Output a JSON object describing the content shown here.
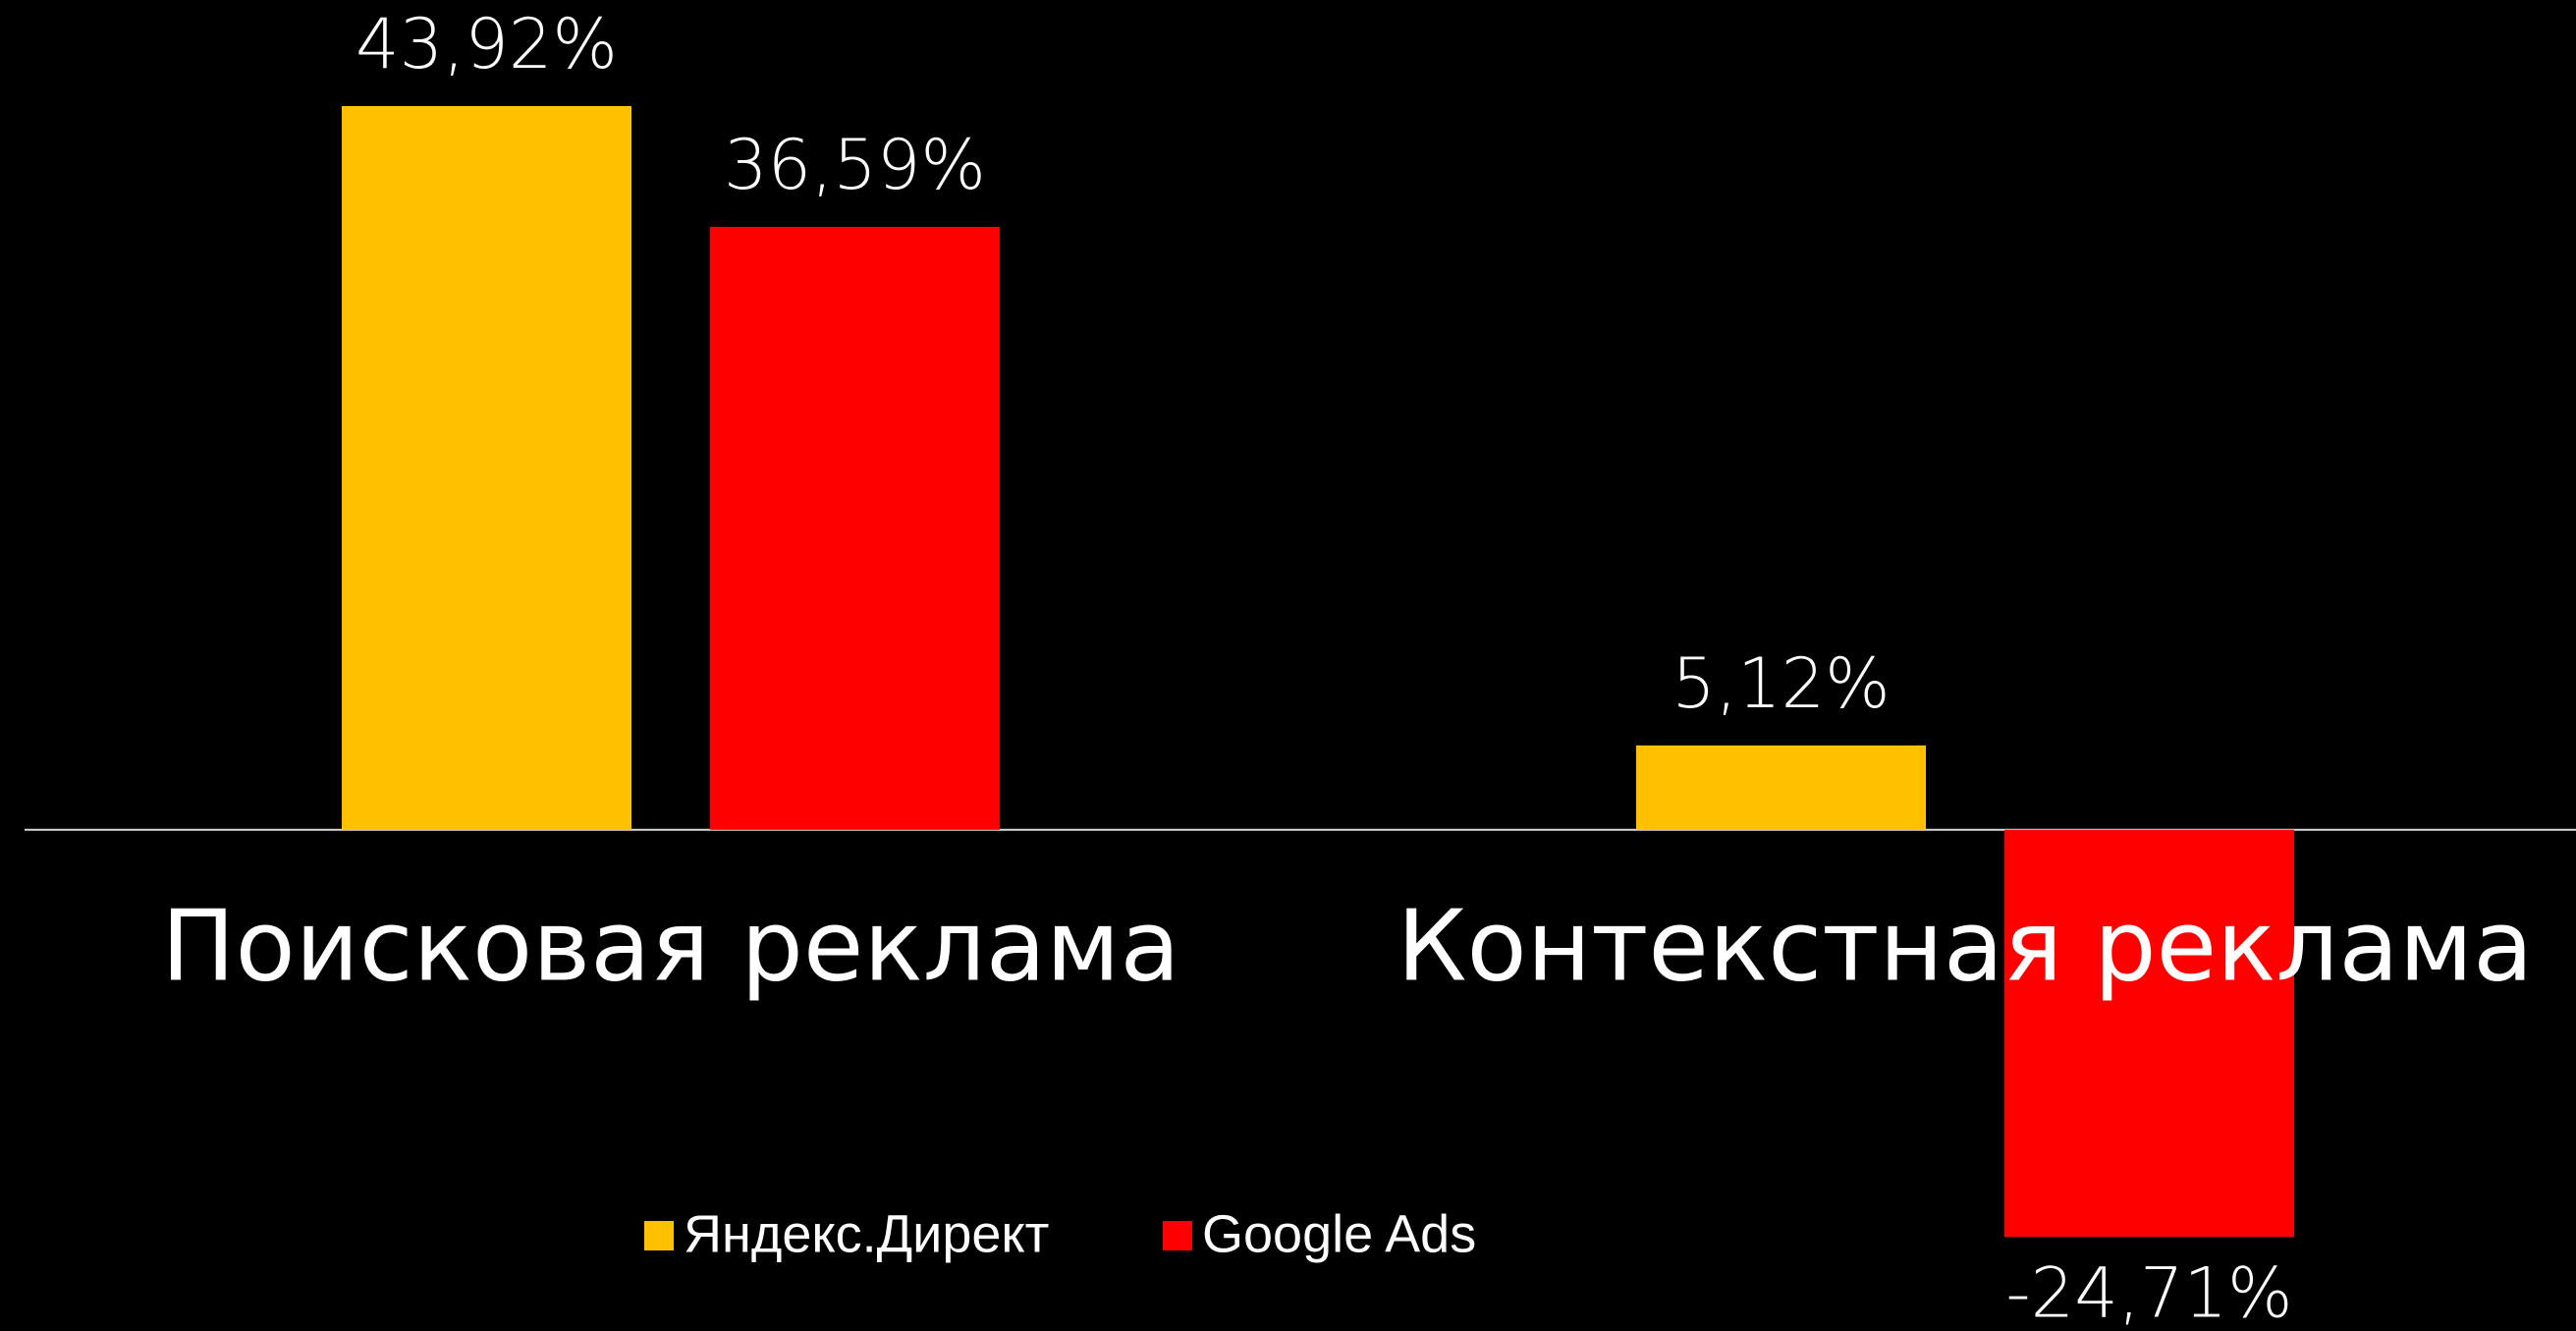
{
  "chart_data": {
    "type": "bar",
    "categories": [
      "Поисковая реклама",
      "Контекстная реклама"
    ],
    "series": [
      {
        "name": "Яндекс.Директ",
        "color": "#ffc000",
        "values": [
          43.92,
          5.12
        ],
        "value_labels": [
          "43,92%",
          "5,12%"
        ]
      },
      {
        "name": "Google Ads",
        "color": "#ff0000",
        "values": [
          36.59,
          -24.71
        ],
        "value_labels": [
          "36,59%",
          "-24,71%"
        ]
      }
    ],
    "ylim": [
      -30,
      50
    ]
  }
}
